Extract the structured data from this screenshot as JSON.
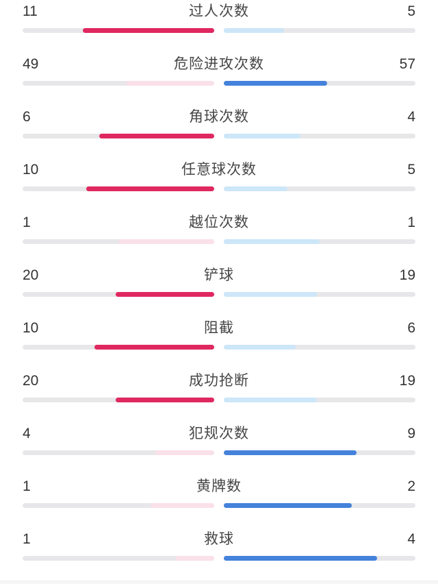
{
  "colors": {
    "home_strong": "#E02860",
    "home_light": "#FAE0E8",
    "away_strong": "#4482DB",
    "away_light": "#CDE6F8",
    "track": "#E7E7E9",
    "value_text": "#333333",
    "label_text": "#464646"
  },
  "stats": {
    "rows": [
      {
        "label": "过人次数",
        "home": 11,
        "away": 5
      },
      {
        "label": "危险进攻次数",
        "home": 49,
        "away": 57
      },
      {
        "label": "角球次数",
        "home": 6,
        "away": 4
      },
      {
        "label": "任意球次数",
        "home": 10,
        "away": 5
      },
      {
        "label": "越位次数",
        "home": 1,
        "away": 1
      },
      {
        "label": "铲球",
        "home": 20,
        "away": 19
      },
      {
        "label": "阻截",
        "home": 10,
        "away": 6
      },
      {
        "label": "成功抢断",
        "home": 20,
        "away": 19
      },
      {
        "label": "犯规次数",
        "home": 4,
        "away": 9
      },
      {
        "label": "黄牌数",
        "home": 1,
        "away": 2
      },
      {
        "label": "救球",
        "home": 1,
        "away": 4
      }
    ]
  },
  "chart_data": {
    "type": "bar",
    "orientation": "horizontal-paired",
    "categories": [
      "过人次数",
      "危险进攻次数",
      "角球次数",
      "任意球次数",
      "越位次数",
      "铲球",
      "阻截",
      "成功抢断",
      "犯规次数",
      "黄牌数",
      "救球"
    ],
    "series": [
      {
        "name": "home",
        "color": "#E02860",
        "values": [
          11,
          49,
          6,
          10,
          1,
          20,
          10,
          20,
          4,
          1,
          1
        ]
      },
      {
        "name": "away",
        "color": "#4482DB",
        "values": [
          5,
          57,
          4,
          5,
          1,
          19,
          6,
          19,
          9,
          2,
          4
        ]
      }
    ],
    "title": "",
    "xlabel": "",
    "ylabel": "",
    "note": "each pair of bars filled proportionally to value/(home+away); saturated color marks the larger value, pale color the smaller or tied value"
  }
}
